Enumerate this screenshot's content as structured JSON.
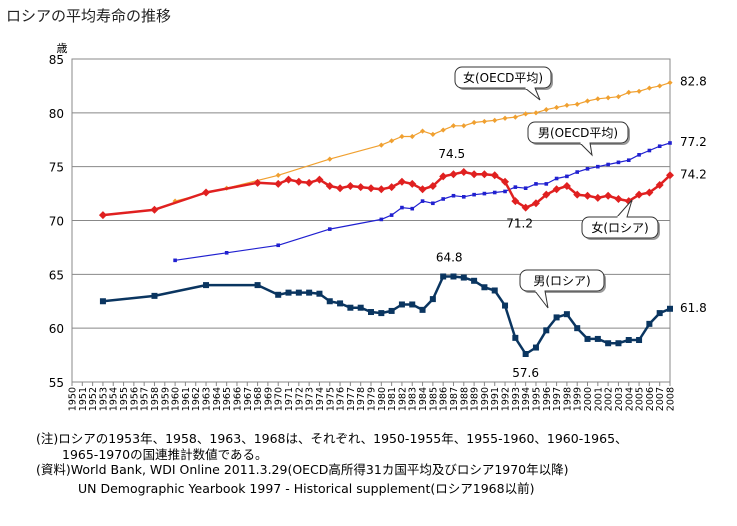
{
  "title": "ロシアの平均寿命の推移",
  "notes": {
    "note1": "(注)ロシアの1953年、1958、1963、1968は、それぞれ、1950-1955年、1955-1960、1960-1965、",
    "note2": "1965-1970の国連推計数値である。",
    "source1": "(資料)World Bank, WDI Online 2011.3.29(OECD高所得31カ国平均及びロシア1970年以降)",
    "source2": "UN Demographic Yearbook 1997 - Historical supplement(ロシア1968以前)"
  },
  "chart_data": {
    "type": "line",
    "ylabel": "歳",
    "ylim": [
      55,
      85
    ],
    "yticks": [
      55,
      60,
      65,
      70,
      75,
      80,
      85
    ],
    "x_categories": [
      1950,
      1951,
      1952,
      1953,
      1954,
      1955,
      1956,
      1957,
      1958,
      1959,
      1960,
      1961,
      1962,
      1963,
      1964,
      1965,
      1966,
      1967,
      1968,
      1969,
      1970,
      1971,
      1972,
      1973,
      1974,
      1975,
      1976,
      1977,
      1978,
      1979,
      1980,
      1981,
      1982,
      1983,
      1984,
      1985,
      1986,
      1987,
      1988,
      1989,
      1990,
      1991,
      1992,
      1993,
      1994,
      1995,
      1996,
      1997,
      1998,
      1999,
      2000,
      2001,
      2002,
      2003,
      2004,
      2005,
      2006,
      2007,
      2008
    ],
    "grid": "horizontal",
    "series": [
      {
        "name": "女(OECD平均)",
        "color": "#f0a030",
        "marker": "diamond",
        "points": [
          [
            1960,
            71.8
          ],
          [
            1965,
            73.0
          ],
          [
            1970,
            74.2
          ],
          [
            1975,
            75.7
          ],
          [
            1980,
            77.0
          ],
          [
            1981,
            77.4
          ],
          [
            1982,
            77.8
          ],
          [
            1983,
            77.8
          ],
          [
            1984,
            78.3
          ],
          [
            1985,
            78.0
          ],
          [
            1986,
            78.4
          ],
          [
            1987,
            78.8
          ],
          [
            1988,
            78.8
          ],
          [
            1989,
            79.1
          ],
          [
            1990,
            79.2
          ],
          [
            1991,
            79.3
          ],
          [
            1992,
            79.5
          ],
          [
            1993,
            79.6
          ],
          [
            1994,
            79.9
          ],
          [
            1995,
            80.0
          ],
          [
            1996,
            80.3
          ],
          [
            1997,
            80.5
          ],
          [
            1998,
            80.7
          ],
          [
            1999,
            80.8
          ],
          [
            2000,
            81.1
          ],
          [
            2001,
            81.3
          ],
          [
            2002,
            81.4
          ],
          [
            2003,
            81.5
          ],
          [
            2004,
            81.9
          ],
          [
            2005,
            82.0
          ],
          [
            2006,
            82.3
          ],
          [
            2007,
            82.5
          ],
          [
            2008,
            82.8
          ]
        ]
      },
      {
        "name": "男(OECD平均)",
        "color": "#2020d0",
        "marker": "square-small",
        "points": [
          [
            1960,
            66.3
          ],
          [
            1965,
            67.0
          ],
          [
            1970,
            67.7
          ],
          [
            1975,
            69.2
          ],
          [
            1980,
            70.1
          ],
          [
            1981,
            70.5
          ],
          [
            1982,
            71.2
          ],
          [
            1983,
            71.1
          ],
          [
            1984,
            71.8
          ],
          [
            1985,
            71.6
          ],
          [
            1986,
            72.0
          ],
          [
            1987,
            72.3
          ],
          [
            1988,
            72.2
          ],
          [
            1989,
            72.4
          ],
          [
            1990,
            72.5
          ],
          [
            1991,
            72.6
          ],
          [
            1992,
            72.7
          ],
          [
            1993,
            73.1
          ],
          [
            1994,
            73.0
          ],
          [
            1995,
            73.4
          ],
          [
            1996,
            73.4
          ],
          [
            1997,
            73.9
          ],
          [
            1998,
            74.1
          ],
          [
            1999,
            74.5
          ],
          [
            2000,
            74.8
          ],
          [
            2001,
            75.0
          ],
          [
            2002,
            75.2
          ],
          [
            2003,
            75.4
          ],
          [
            2004,
            75.6
          ],
          [
            2005,
            76.1
          ],
          [
            2006,
            76.5
          ],
          [
            2007,
            76.9
          ],
          [
            2008,
            77.2
          ]
        ]
      },
      {
        "name": "女(ロシア)",
        "color": "#e02020",
        "marker": "diamond-large",
        "points": [
          [
            1953,
            70.5
          ],
          [
            1958,
            71.0
          ],
          [
            1963,
            72.6
          ],
          [
            1968,
            73.5
          ],
          [
            1970,
            73.4
          ],
          [
            1971,
            73.8
          ],
          [
            1972,
            73.6
          ],
          [
            1973,
            73.5
          ],
          [
            1974,
            73.8
          ],
          [
            1975,
            73.2
          ],
          [
            1976,
            73.0
          ],
          [
            1977,
            73.2
          ],
          [
            1978,
            73.1
          ],
          [
            1979,
            73.0
          ],
          [
            1980,
            72.9
          ],
          [
            1981,
            73.1
          ],
          [
            1982,
            73.6
          ],
          [
            1983,
            73.4
          ],
          [
            1984,
            72.9
          ],
          [
            1985,
            73.2
          ],
          [
            1986,
            74.1
          ],
          [
            1987,
            74.3
          ],
          [
            1988,
            74.5
          ],
          [
            1989,
            74.3
          ],
          [
            1990,
            74.3
          ],
          [
            1991,
            74.2
          ],
          [
            1992,
            73.6
          ],
          [
            1993,
            71.8
          ],
          [
            1994,
            71.2
          ],
          [
            1995,
            71.6
          ],
          [
            1996,
            72.4
          ],
          [
            1997,
            72.9
          ],
          [
            1998,
            73.2
          ],
          [
            1999,
            72.4
          ],
          [
            2000,
            72.3
          ],
          [
            2001,
            72.1
          ],
          [
            2002,
            72.3
          ],
          [
            2003,
            72.0
          ],
          [
            2004,
            71.8
          ],
          [
            2005,
            72.4
          ],
          [
            2006,
            72.6
          ],
          [
            2007,
            73.3
          ],
          [
            2008,
            74.2
          ]
        ]
      },
      {
        "name": "男(ロシア)",
        "color": "#0a3560",
        "marker": "square-large",
        "points": [
          [
            1953,
            62.5
          ],
          [
            1958,
            63.0
          ],
          [
            1963,
            64.0
          ],
          [
            1968,
            64.0
          ],
          [
            1970,
            63.1
          ],
          [
            1971,
            63.3
          ],
          [
            1972,
            63.3
          ],
          [
            1973,
            63.3
          ],
          [
            1974,
            63.2
          ],
          [
            1975,
            62.5
          ],
          [
            1976,
            62.3
          ],
          [
            1977,
            61.9
          ],
          [
            1978,
            61.9
          ],
          [
            1979,
            61.5
          ],
          [
            1980,
            61.4
          ],
          [
            1981,
            61.6
          ],
          [
            1982,
            62.2
          ],
          [
            1983,
            62.2
          ],
          [
            1984,
            61.7
          ],
          [
            1985,
            62.7
          ],
          [
            1986,
            64.8
          ],
          [
            1987,
            64.8
          ],
          [
            1988,
            64.7
          ],
          [
            1989,
            64.4
          ],
          [
            1990,
            63.8
          ],
          [
            1991,
            63.5
          ],
          [
            1992,
            62.1
          ],
          [
            1993,
            59.1
          ],
          [
            1994,
            57.6
          ],
          [
            1995,
            58.2
          ],
          [
            1996,
            59.8
          ],
          [
            1997,
            61.0
          ],
          [
            1998,
            61.3
          ],
          [
            1999,
            60.0
          ],
          [
            2000,
            59.0
          ],
          [
            2001,
            59.0
          ],
          [
            2002,
            58.6
          ],
          [
            2003,
            58.6
          ],
          [
            2004,
            58.9
          ],
          [
            2005,
            58.9
          ],
          [
            2006,
            60.4
          ],
          [
            2007,
            61.4
          ],
          [
            2008,
            61.8
          ]
        ]
      }
    ],
    "annotations": [
      {
        "text": "82.8",
        "x": 2008,
        "y": 82.8
      },
      {
        "text": "77.2",
        "x": 2008,
        "y": 77.2
      },
      {
        "text": "74.2",
        "x": 2008,
        "y": 74.2
      },
      {
        "text": "61.8",
        "x": 2008,
        "y": 61.8
      },
      {
        "text": "74.5",
        "x": 1988,
        "y": 74.5
      },
      {
        "text": "71.2",
        "x": 1994,
        "y": 71.2
      },
      {
        "text": "64.8",
        "x": 1986,
        "y": 64.8
      },
      {
        "text": "57.6",
        "x": 1994,
        "y": 57.6
      }
    ]
  }
}
